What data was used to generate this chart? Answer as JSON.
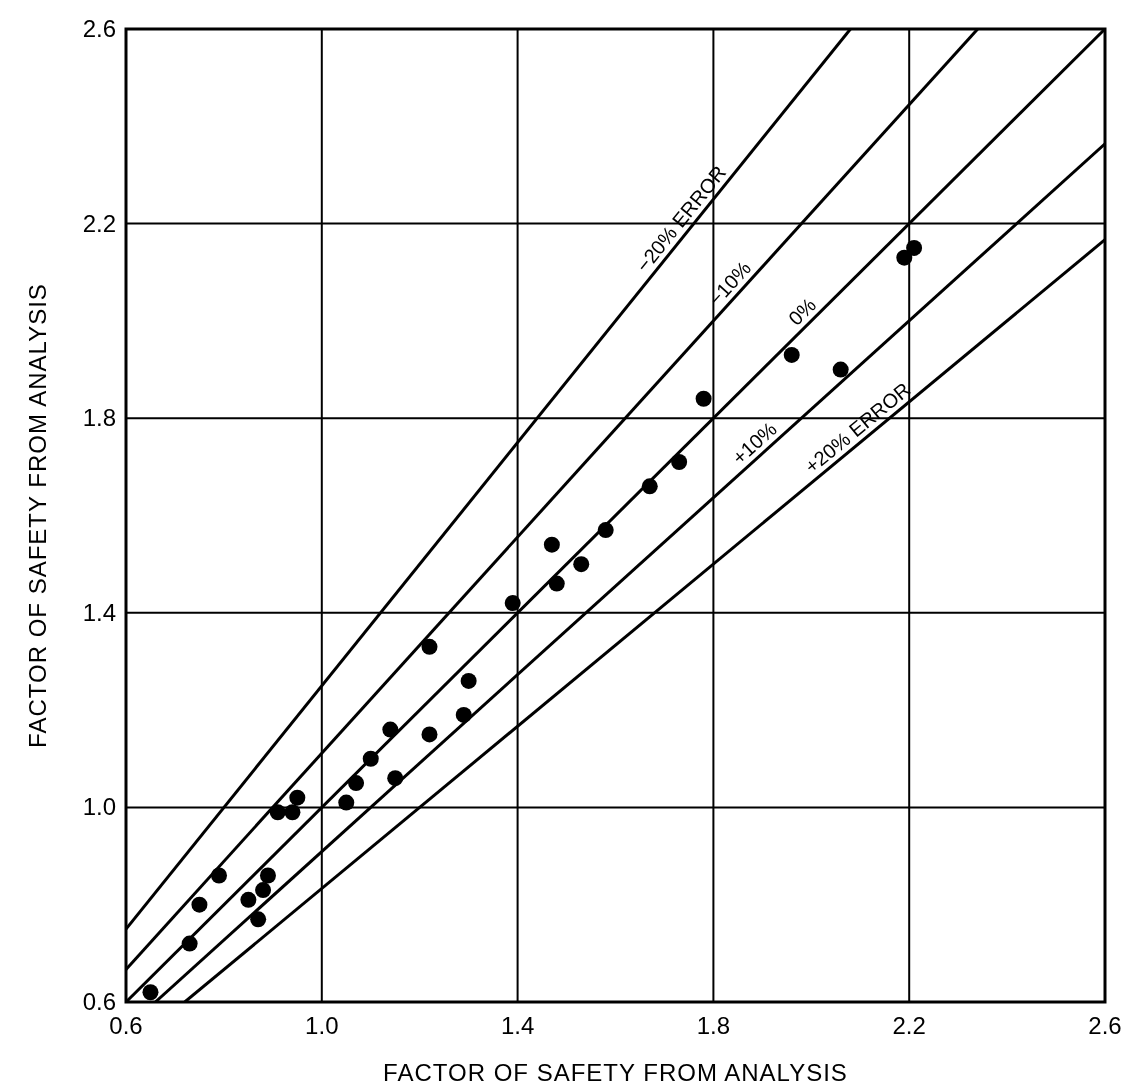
{
  "chart_data": {
    "type": "scatter",
    "xlabel": "FACTOR OF SAFETY FROM ANALYSIS",
    "ylabel": "FACTOR OF SAFETY FROM ANALYSIS",
    "xlim": [
      0.6,
      2.6
    ],
    "ylim": [
      0.6,
      2.6
    ],
    "xticks": [
      0.6,
      {
        "value": 1.0,
        "label": "1.0"
      },
      1.4,
      1.8,
      2.2,
      2.6
    ],
    "yticks": [
      0.6,
      {
        "value": 1.0,
        "label": "1.0"
      },
      1.4,
      1.8,
      2.2,
      2.6
    ],
    "grid": true,
    "series": [
      {
        "marker": "circle",
        "color": "#000000",
        "x": [
          0.65,
          0.73,
          0.75,
          0.79,
          0.85,
          0.88,
          0.89,
          0.87,
          0.91,
          0.95,
          0.94,
          1.05,
          1.07,
          1.1,
          1.15,
          1.14,
          1.22,
          1.29,
          1.73,
          1.67,
          1.58,
          1.47,
          1.53,
          1.48,
          1.39,
          1.22,
          1.3,
          2.21,
          2.19,
          1.96,
          2.06,
          1.78
        ],
        "values": [
          0.62,
          0.72,
          0.8,
          0.86,
          0.81,
          0.83,
          0.86,
          0.77,
          0.99,
          1.02,
          0.99,
          1.01,
          1.05,
          1.1,
          1.06,
          1.16,
          1.15,
          1.19,
          1.71,
          1.66,
          1.57,
          1.54,
          1.5,
          1.46,
          1.42,
          1.33,
          1.26,
          2.15,
          2.13,
          1.93,
          1.9,
          1.84
        ]
      },
      {
        "type": "line",
        "name": "−20% ERROR",
        "color": "#000000",
        "line_style": "solid",
        "x": [
          0.6,
          2.08
        ],
        "values": [
          0.75,
          2.6
        ]
      },
      {
        "type": "line",
        "name": "−10%",
        "color": "#000000",
        "line_style": "solid",
        "x": [
          0.6,
          2.34
        ],
        "values": [
          0.667,
          2.6
        ]
      },
      {
        "type": "line",
        "name": "0%",
        "color": "#000000",
        "line_style": "solid",
        "x": [
          0.6,
          2.6
        ],
        "values": [
          0.6,
          2.6
        ]
      },
      {
        "type": "line",
        "name": "+10%",
        "color": "#000000",
        "line_style": "solid",
        "x": [
          0.66,
          2.6
        ],
        "values": [
          0.6,
          2.364
        ]
      },
      {
        "type": "line",
        "name": "+20% ERROR",
        "color": "#000000",
        "line_style": "solid",
        "x": [
          0.72,
          2.6
        ],
        "values": [
          0.6,
          2.167
        ]
      }
    ]
  }
}
